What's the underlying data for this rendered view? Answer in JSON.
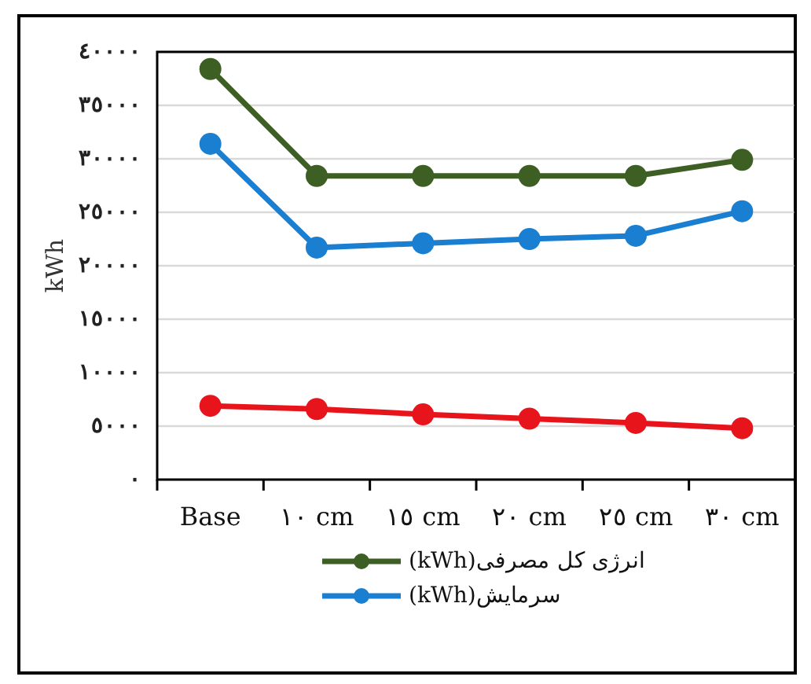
{
  "chart_data": {
    "type": "line",
    "ylabel": "kWh",
    "categories": [
      "Base",
      "١٠ cm",
      "١٥ cm",
      "٢٠ cm",
      "٢٥ cm",
      "٣٠ cm"
    ],
    "series": [
      {
        "name": "انرژی کل مصرفی(kWh)",
        "color": "#3d5f23",
        "values": [
          38400,
          28400,
          28400,
          28400,
          28400,
          29900
        ]
      },
      {
        "name": "سرمایش(kWh)",
        "color": "#1a7fd0",
        "values": [
          31400,
          21700,
          22100,
          22500,
          22800,
          25100
        ]
      },
      {
        "color": "#e8141b",
        "values": [
          6900,
          6600,
          6100,
          5700,
          5300,
          4800
        ]
      }
    ],
    "ylim": [
      0,
      40000
    ],
    "yticks": [
      {
        "value": 0,
        "label": "٠"
      },
      {
        "value": 5000,
        "label": "٥٠٠٠"
      },
      {
        "value": 10000,
        "label": "١٠٠٠٠"
      },
      {
        "value": 15000,
        "label": "١٥٠٠٠"
      },
      {
        "value": 20000,
        "label": "٢٠٠٠٠"
      },
      {
        "value": 25000,
        "label": "٢٥٠٠٠"
      },
      {
        "value": 30000,
        "label": "٣٠٠٠٠"
      },
      {
        "value": 35000,
        "label": "٣٥٠٠٠"
      },
      {
        "value": 40000,
        "label": "٤٠٠٠٠"
      }
    ],
    "grid": "y",
    "legend": "bottom",
    "marker": "circle",
    "line_style": "solid"
  }
}
